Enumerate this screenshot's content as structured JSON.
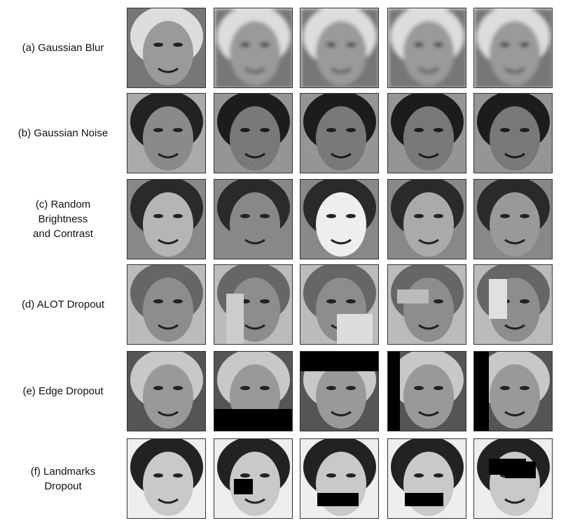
{
  "figure": {
    "rows": [
      {
        "label": [
          "(a) Gaussian Blur"
        ]
      },
      {
        "label": [
          "(b) Gaussian Noise"
        ]
      },
      {
        "label": [
          "(c) Random",
          "Brightness",
          "and Contrast"
        ]
      },
      {
        "label": [
          "(d) ALOT Dropout"
        ]
      },
      {
        "label": [
          "(e) Edge Dropout"
        ]
      },
      {
        "label": [
          "(f) Landmarks",
          "Dropout"
        ]
      }
    ]
  }
}
